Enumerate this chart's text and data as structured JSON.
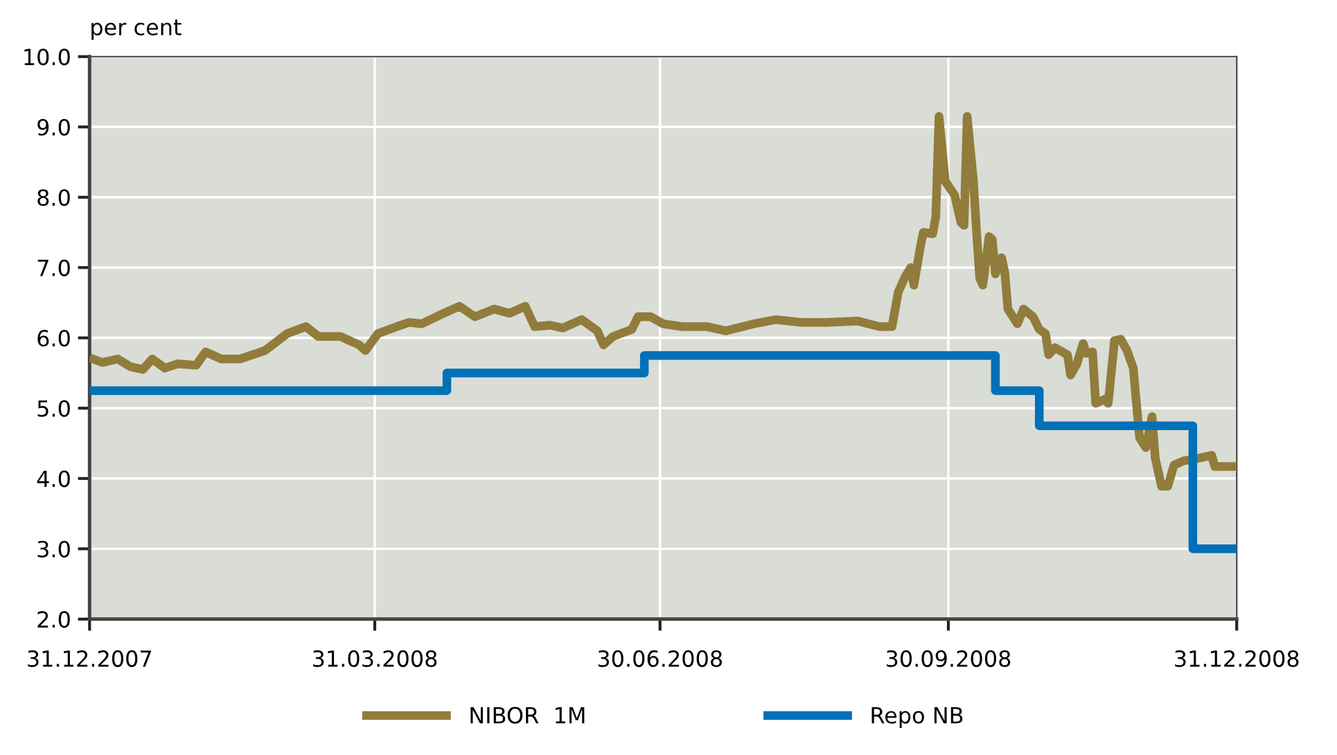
{
  "chart_data": {
    "type": "line",
    "ylabel": "per cent",
    "series": [
      {
        "name": "NIBOR  1M",
        "color": "#917c3b",
        "x": [
          "2007-12-31",
          "2008-01-04",
          "2008-01-09",
          "2008-01-13",
          "2008-01-17",
          "2008-01-20",
          "2008-01-24",
          "2008-01-28",
          "2008-02-03",
          "2008-02-06",
          "2008-02-11",
          "2008-02-17",
          "2008-02-25",
          "2008-03-03",
          "2008-03-09",
          "2008-03-13",
          "2008-03-20",
          "2008-03-26",
          "2008-03-28",
          "2008-04-01",
          "2008-04-07",
          "2008-04-11",
          "2008-04-15",
          "2008-04-21",
          "2008-04-27",
          "2008-05-02",
          "2008-05-08",
          "2008-05-13",
          "2008-05-18",
          "2008-05-21",
          "2008-05-26",
          "2008-05-30",
          "2008-06-05",
          "2008-06-10",
          "2008-06-12",
          "2008-06-15",
          "2008-06-21",
          "2008-06-23",
          "2008-06-27",
          "2008-07-01",
          "2008-07-07",
          "2008-07-15",
          "2008-07-21",
          "2008-07-30",
          "2008-08-06",
          "2008-08-14",
          "2008-08-22",
          "2008-09-01",
          "2008-09-08",
          "2008-09-12",
          "2008-09-14",
          "2008-09-16",
          "2008-09-18",
          "2008-09-19",
          "2008-09-21",
          "2008-09-22",
          "2008-09-25",
          "2008-09-26",
          "2008-09-27",
          "2008-09-29",
          "2008-10-02",
          "2008-10-04",
          "2008-10-05",
          "2008-10-06",
          "2008-10-08",
          "2008-10-09",
          "2008-10-10",
          "2008-10-11",
          "2008-10-13",
          "2008-10-14",
          "2008-10-15",
          "2008-10-17",
          "2008-10-18",
          "2008-10-19",
          "2008-10-22",
          "2008-10-24",
          "2008-10-27",
          "2008-10-29",
          "2008-10-31",
          "2008-11-01",
          "2008-11-03",
          "2008-11-07",
          "2008-11-08",
          "2008-11-10",
          "2008-11-12",
          "2008-11-13",
          "2008-11-15",
          "2008-11-16",
          "2008-11-19",
          "2008-11-20",
          "2008-11-22",
          "2008-11-24",
          "2008-11-26",
          "2008-11-28",
          "2008-11-29",
          "2008-11-30",
          "2008-12-02",
          "2008-12-04",
          "2008-12-05",
          "2008-12-07",
          "2008-12-09",
          "2008-12-11",
          "2008-12-14",
          "2008-12-19",
          "2008-12-23",
          "2008-12-24",
          "2008-12-31"
        ],
        "values": [
          5.72,
          5.65,
          5.7,
          5.59,
          5.55,
          5.7,
          5.57,
          5.63,
          5.61,
          5.8,
          5.7,
          5.7,
          5.82,
          6.06,
          6.16,
          6.02,
          6.02,
          5.9,
          5.82,
          6.06,
          6.16,
          6.22,
          6.2,
          6.33,
          6.45,
          6.3,
          6.41,
          6.35,
          6.45,
          6.16,
          6.18,
          6.14,
          6.26,
          6.1,
          5.9,
          6.02,
          6.12,
          6.3,
          6.3,
          6.2,
          6.16,
          6.16,
          6.1,
          6.2,
          6.26,
          6.22,
          6.22,
          6.24,
          6.16,
          6.16,
          6.65,
          6.85,
          7.0,
          6.75,
          7.28,
          7.5,
          7.48,
          7.73,
          9.15,
          8.23,
          8.03,
          7.64,
          7.6,
          9.15,
          8.23,
          7.5,
          6.85,
          6.75,
          7.44,
          7.4,
          6.91,
          7.14,
          6.93,
          6.41,
          6.2,
          6.41,
          6.3,
          6.12,
          6.06,
          5.76,
          5.86,
          5.76,
          5.47,
          5.63,
          5.92,
          5.78,
          5.8,
          5.07,
          5.13,
          5.07,
          5.96,
          5.98,
          5.82,
          5.57,
          5.07,
          4.58,
          4.44,
          4.88,
          4.29,
          3.89,
          3.89,
          4.19,
          4.25,
          4.29,
          4.33,
          4.17,
          4.17
        ]
      },
      {
        "name": "Repo NB",
        "type": "step",
        "color": "#0070b8",
        "x": [
          "2007-12-31",
          "2008-04-23",
          "2008-06-25",
          "2008-10-15",
          "2008-10-29",
          "2008-12-17",
          "2008-12-31"
        ],
        "values": [
          5.25,
          5.5,
          5.75,
          5.25,
          4.75,
          3.0,
          3.0
        ]
      }
    ],
    "xlim": [
      "2007-12-31",
      "2008-12-31"
    ],
    "xticks": [
      {
        "value": "2007-12-31",
        "label": "31.12.2007"
      },
      {
        "value": "2008-03-31",
        "label": "31.03.2008"
      },
      {
        "value": "2008-06-30",
        "label": "30.06.2008"
      },
      {
        "value": "2008-09-30",
        "label": "30.09.2008"
      },
      {
        "value": "2008-12-31",
        "label": "31.12.2008"
      }
    ],
    "ylim": [
      2,
      10
    ],
    "yticks": [
      {
        "value": 2,
        "label": "2.0"
      },
      {
        "value": 3,
        "label": "3.0"
      },
      {
        "value": 4,
        "label": "4.0"
      },
      {
        "value": 5,
        "label": "5.0"
      },
      {
        "value": 6,
        "label": "6.0"
      },
      {
        "value": 7,
        "label": "7.0"
      },
      {
        "value": 8,
        "label": "8.0"
      },
      {
        "value": 9,
        "label": "9.0"
      },
      {
        "value": 10,
        "label": "10.0"
      }
    ],
    "grid": true,
    "legend": "bottom"
  }
}
